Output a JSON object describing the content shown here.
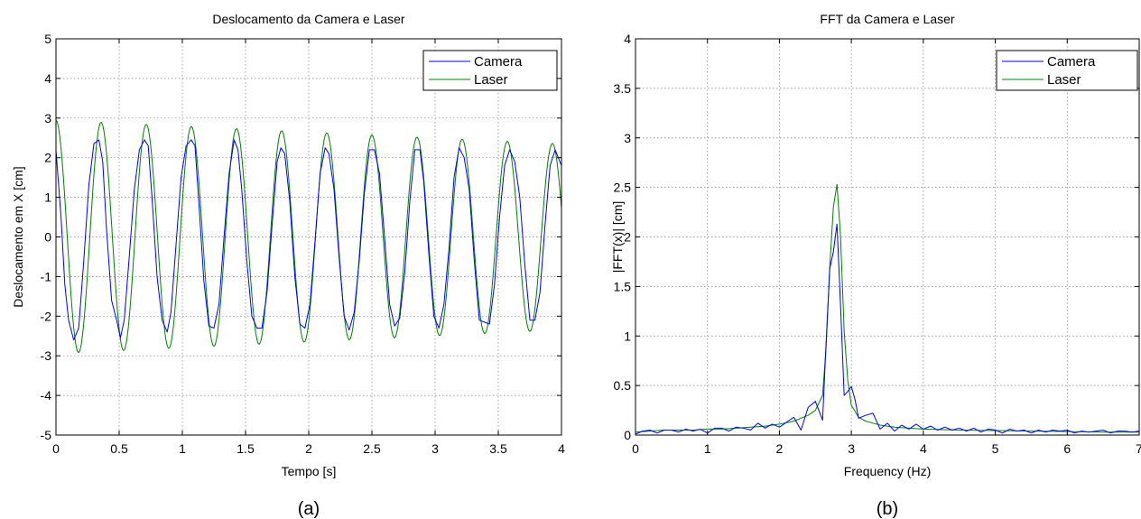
{
  "figure": {
    "captions": [
      "(a)",
      "(b)"
    ]
  },
  "colors": {
    "camera": "#0000ff",
    "laser": "#008000",
    "grid": "#7f7f7f",
    "axis": "#000000"
  },
  "chart_data": [
    {
      "type": "line",
      "title": "Deslocamento da Camera e Laser",
      "xlabel": "Tempo [s]",
      "ylabel": "Deslocamento em X [cm]",
      "xlim": [
        0,
        4
      ],
      "ylim": [
        -5,
        5
      ],
      "xticks": [
        0,
        0.5,
        1,
        1.5,
        2,
        2.5,
        3,
        3.5,
        4
      ],
      "xtick_labels": [
        "0",
        "0.5",
        "1",
        "1.5",
        "2",
        "2.5",
        "3",
        "3.5",
        "4"
      ],
      "yticks": [
        -5,
        -4,
        -3,
        -2,
        -1,
        0,
        1,
        2,
        3,
        4,
        5
      ],
      "ytick_labels": [
        "-5",
        "-4",
        "-3",
        "-2",
        "-1",
        "0",
        "1",
        "2",
        "3",
        "4",
        "5"
      ],
      "grid": true,
      "legend_position": "top-right",
      "series": [
        {
          "name": "Camera",
          "color": "#0000ff",
          "x": [
            0,
            0.04,
            0.07,
            0.1,
            0.14,
            0.18,
            0.22,
            0.26,
            0.3,
            0.34,
            0.37,
            0.4,
            0.44,
            0.48,
            0.51,
            0.54,
            0.58,
            0.62,
            0.66,
            0.7,
            0.73,
            0.76,
            0.8,
            0.84,
            0.88,
            0.91,
            0.95,
            0.99,
            1.03,
            1.07,
            1.1,
            1.13,
            1.17,
            1.21,
            1.25,
            1.29,
            1.33,
            1.37,
            1.41,
            1.44,
            1.47,
            1.51,
            1.55,
            1.59,
            1.63,
            1.67,
            1.71,
            1.75,
            1.78,
            1.81,
            1.85,
            1.89,
            1.93,
            1.97,
            2.01,
            2.05,
            2.09,
            2.13,
            2.16,
            2.2,
            2.24,
            2.28,
            2.32,
            2.36,
            2.4,
            2.44,
            2.48,
            2.52,
            2.56,
            2.6,
            2.64,
            2.68,
            2.72,
            2.76,
            2.8,
            2.84,
            2.88,
            2.91,
            2.95,
            2.99,
            3.03,
            3.07,
            3.11,
            3.15,
            3.19,
            3.23,
            3.27,
            3.31,
            3.35,
            3.39,
            3.43,
            3.47,
            3.51,
            3.55,
            3.59,
            3.63,
            3.67,
            3.71,
            3.75,
            3.79,
            3.83,
            3.87,
            3.91,
            3.95,
            4.0
          ],
          "y": [
            2.2,
            0.5,
            -1.2,
            -2.1,
            -2.6,
            -2.3,
            -0.6,
            1.3,
            2.35,
            2.45,
            1.9,
            0.2,
            -1.6,
            -2.1,
            -2.55,
            -2.1,
            -0.5,
            1.2,
            2.2,
            2.45,
            2.3,
            1.0,
            -1.0,
            -2.1,
            -2.4,
            -1.9,
            -0.2,
            1.5,
            2.3,
            2.45,
            2.3,
            0.9,
            -1.1,
            -2.25,
            -2.3,
            -1.7,
            0.0,
            1.6,
            2.45,
            2.2,
            1.2,
            -0.6,
            -2.0,
            -2.3,
            -2.3,
            -1.4,
            0.3,
            1.9,
            2.25,
            2.1,
            0.9,
            -1.0,
            -2.2,
            -2.3,
            -1.7,
            -0.1,
            1.6,
            2.25,
            2.1,
            1.2,
            -0.5,
            -2.0,
            -2.35,
            -1.9,
            -0.6,
            1.1,
            2.2,
            2.2,
            1.6,
            0.0,
            -1.7,
            -2.25,
            -2.05,
            -0.9,
            0.9,
            2.2,
            2.2,
            1.4,
            -0.4,
            -2.0,
            -2.3,
            -1.7,
            -0.3,
            1.5,
            2.25,
            2.0,
            1.2,
            -0.6,
            -2.1,
            -2.15,
            -2.2,
            -1.2,
            0.5,
            1.8,
            2.2,
            1.9,
            1.0,
            -0.7,
            -2.1,
            -2.1,
            -1.4,
            0.3,
            1.8,
            2.2,
            1.8
          ]
        },
        {
          "name": "Laser",
          "color": "#008000",
          "amplitude": [
            2.95,
            2.35
          ],
          "frequency_hz": 2.8,
          "phase_rad": 1.571,
          "samples": 401
        }
      ]
    },
    {
      "type": "line",
      "title": "FFT da Camera e Laser",
      "xlabel": "Frequency (Hz)",
      "ylabel": "|FFT(x)| [cm]",
      "xlim": [
        0,
        7
      ],
      "ylim": [
        0,
        4
      ],
      "xticks": [
        0,
        1,
        2,
        3,
        4,
        5,
        6,
        7
      ],
      "xtick_labels": [
        "0",
        "1",
        "2",
        "3",
        "4",
        "5",
        "6",
        "7"
      ],
      "yticks": [
        0,
        0.5,
        1,
        1.5,
        2,
        2.5,
        3,
        3.5,
        4
      ],
      "ytick_labels": [
        "0",
        "0.5",
        "1",
        "1.5",
        "2",
        "2.5",
        "3",
        "3.5",
        "4"
      ],
      "grid": true,
      "legend_position": "top-right",
      "series": [
        {
          "name": "Camera",
          "color": "#0000ff",
          "x": [
            0,
            0.1,
            0.2,
            0.3,
            0.4,
            0.5,
            0.6,
            0.7,
            0.8,
            0.9,
            1.0,
            1.1,
            1.2,
            1.3,
            1.4,
            1.5,
            1.6,
            1.7,
            1.8,
            1.9,
            2.0,
            2.1,
            2.2,
            2.3,
            2.4,
            2.5,
            2.6,
            2.65,
            2.7,
            2.75,
            2.8,
            2.85,
            2.9,
            2.95,
            3.0,
            3.05,
            3.1,
            3.2,
            3.3,
            3.4,
            3.5,
            3.6,
            3.7,
            3.8,
            3.9,
            4.0,
            4.1,
            4.2,
            4.3,
            4.4,
            4.5,
            4.6,
            4.7,
            4.8,
            4.9,
            5.0,
            5.1,
            5.2,
            5.3,
            5.4,
            5.5,
            5.6,
            5.7,
            5.8,
            5.9,
            6.0,
            6.1,
            6.2,
            6.3,
            6.4,
            6.5,
            6.6,
            6.7,
            6.8,
            6.9,
            7.0
          ],
          "y": [
            0.01,
            0.04,
            0.05,
            0.02,
            0.05,
            0.05,
            0.03,
            0.06,
            0.04,
            0.06,
            0.02,
            0.07,
            0.07,
            0.04,
            0.08,
            0.07,
            0.05,
            0.12,
            0.07,
            0.11,
            0.08,
            0.13,
            0.18,
            0.05,
            0.28,
            0.34,
            0.15,
            0.95,
            1.68,
            1.85,
            2.13,
            1.3,
            0.4,
            0.44,
            0.49,
            0.36,
            0.17,
            0.2,
            0.22,
            0.06,
            0.12,
            0.04,
            0.1,
            0.06,
            0.11,
            0.06,
            0.09,
            0.05,
            0.08,
            0.05,
            0.07,
            0.04,
            0.07,
            0.03,
            0.06,
            0.05,
            0.02,
            0.06,
            0.04,
            0.05,
            0.02,
            0.05,
            0.03,
            0.05,
            0.04,
            0.05,
            0.02,
            0.04,
            0.03,
            0.04,
            0.05,
            0.02,
            0.04,
            0.04,
            0.03,
            0.04
          ]
        },
        {
          "name": "Laser",
          "color": "#008000",
          "x": [
            0,
            0.2,
            0.4,
            0.6,
            0.8,
            1.0,
            1.2,
            1.4,
            1.6,
            1.8,
            2.0,
            2.2,
            2.4,
            2.5,
            2.6,
            2.65,
            2.7,
            2.75,
            2.8,
            2.85,
            2.9,
            2.95,
            3.0,
            3.05,
            3.1,
            3.2,
            3.3,
            3.4,
            3.6,
            3.8,
            4.0,
            4.5,
            5.0,
            5.5,
            6.0,
            6.5,
            7.0
          ],
          "y": [
            0.03,
            0.04,
            0.05,
            0.05,
            0.05,
            0.06,
            0.06,
            0.07,
            0.08,
            0.09,
            0.11,
            0.14,
            0.2,
            0.25,
            0.4,
            0.9,
            1.7,
            2.3,
            2.53,
            2.0,
            1.05,
            0.55,
            0.3,
            0.24,
            0.18,
            0.14,
            0.12,
            0.1,
            0.08,
            0.07,
            0.06,
            0.05,
            0.045,
            0.04,
            0.035,
            0.03,
            0.03
          ]
        }
      ]
    }
  ]
}
